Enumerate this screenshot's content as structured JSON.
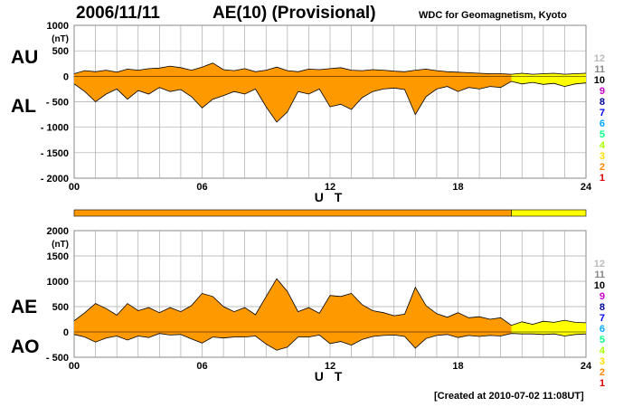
{
  "header": {
    "date": "2006/11/11",
    "title": "AE(10) (Provisional)",
    "source": "WDC for Geomagnetism, Kyoto"
  },
  "footer": {
    "created": "[Created at 2010-07-02 11:08UT]"
  },
  "colors": {
    "orange": "#ff9900",
    "yellow": "#ffff00",
    "grid": "#aaaaaa",
    "stations": [
      "#bbbbbb",
      "#888888",
      "#000000",
      "#cc00cc",
      "#000099",
      "#0000ff",
      "#00aaff",
      "#00ff88",
      "#aaff00",
      "#ffdd00",
      "#ff8800",
      "#dd0000",
      "#dd0088"
    ]
  },
  "stations_legend": [
    "12",
    "11",
    "10",
    "9",
    "8",
    "7",
    "6",
    "5",
    "4",
    "3",
    "2",
    "1"
  ],
  "station_coverage": [
    {
      "from_hour": 0,
      "to_hour": 20.5,
      "stations": 10,
      "color": "orange"
    },
    {
      "from_hour": 20.5,
      "to_hour": 24,
      "stations": 9,
      "color": "yellow"
    }
  ],
  "chart_data": [
    {
      "type": "area",
      "name": "AU/AL",
      "labels": {
        "upper": "AU",
        "lower": "AL"
      },
      "unit_label": "(nT)",
      "xlabel": "U T",
      "x_ticks": [
        "00",
        "06",
        "12",
        "18",
        "24"
      ],
      "y_ticks": [
        "1000",
        "500",
        "0",
        "- 500",
        "- 1000",
        "- 1500",
        "- 2000"
      ],
      "xlim": [
        0,
        24
      ],
      "ylim": [
        -2000,
        1000
      ],
      "series": [
        {
          "name": "AU",
          "x": [
            0,
            0.5,
            1,
            1.5,
            2,
            2.5,
            3,
            3.5,
            4,
            4.5,
            5,
            5.5,
            6,
            6.5,
            7,
            7.5,
            8,
            8.5,
            9,
            9.5,
            10,
            10.5,
            11,
            11.5,
            12,
            12.5,
            13,
            13.5,
            14,
            14.5,
            15,
            15.5,
            16,
            16.5,
            17,
            17.5,
            18,
            18.5,
            19,
            19.5,
            20,
            20.5,
            21,
            21.5,
            22,
            22.5,
            23,
            23.5,
            24
          ],
          "values": [
            50,
            110,
            90,
            120,
            80,
            140,
            120,
            150,
            160,
            200,
            170,
            120,
            180,
            260,
            130,
            110,
            150,
            90,
            120,
            180,
            110,
            90,
            140,
            130,
            150,
            170,
            120,
            110,
            130,
            120,
            100,
            90,
            120,
            140,
            110,
            90,
            80,
            70,
            60,
            50,
            50,
            40,
            60,
            40,
            50,
            60,
            40,
            50,
            60
          ]
        },
        {
          "name": "AL",
          "x": [
            0,
            0.5,
            1,
            1.5,
            2,
            2.5,
            3,
            3.5,
            4,
            4.5,
            5,
            5.5,
            6,
            6.5,
            7,
            7.5,
            8,
            8.5,
            9,
            9.5,
            10,
            10.5,
            11,
            11.5,
            12,
            12.5,
            13,
            13.5,
            14,
            14.5,
            15,
            15.5,
            16,
            16.5,
            17,
            17.5,
            18,
            18.5,
            19,
            19.5,
            20,
            20.5,
            21,
            21.5,
            22,
            22.5,
            23,
            23.5,
            24
          ],
          "values": [
            -150,
            -300,
            -500,
            -350,
            -250,
            -450,
            -280,
            -350,
            -220,
            -300,
            -260,
            -400,
            -620,
            -450,
            -380,
            -300,
            -350,
            -250,
            -600,
            -900,
            -700,
            -300,
            -350,
            -250,
            -600,
            -550,
            -650,
            -420,
            -300,
            -250,
            -230,
            -260,
            -750,
            -400,
            -250,
            -200,
            -300,
            -220,
            -250,
            -200,
            -220,
            -100,
            -150,
            -120,
            -160,
            -140,
            -200,
            -150,
            -130
          ]
        }
      ]
    },
    {
      "type": "area",
      "name": "AE/AO",
      "labels": {
        "upper": "AE",
        "lower": "AO"
      },
      "unit_label": "(nT)",
      "xlabel": "U T",
      "x_ticks": [
        "00",
        "06",
        "12",
        "18",
        "24"
      ],
      "y_ticks": [
        "2000",
        "1500",
        "1000",
        "500",
        "0",
        "- 500"
      ],
      "xlim": [
        0,
        24
      ],
      "ylim": [
        -500,
        2000
      ],
      "series": [
        {
          "name": "AE",
          "x": [
            0,
            0.5,
            1,
            1.5,
            2,
            2.5,
            3,
            3.5,
            4,
            4.5,
            5,
            5.5,
            6,
            6.5,
            7,
            7.5,
            8,
            8.5,
            9,
            9.5,
            10,
            10.5,
            11,
            11.5,
            12,
            12.5,
            13,
            13.5,
            14,
            14.5,
            15,
            15.5,
            16,
            16.5,
            17,
            17.5,
            18,
            18.5,
            19,
            19.5,
            20,
            20.5,
            21,
            21.5,
            22,
            22.5,
            23,
            23.5,
            24
          ],
          "values": [
            220,
            380,
            560,
            460,
            330,
            560,
            420,
            480,
            380,
            480,
            400,
            520,
            760,
            700,
            500,
            400,
            480,
            340,
            700,
            1050,
            800,
            400,
            480,
            370,
            720,
            700,
            760,
            540,
            420,
            380,
            320,
            350,
            880,
            520,
            360,
            290,
            380,
            280,
            300,
            250,
            280,
            130,
            200,
            150,
            210,
            190,
            230,
            190,
            180
          ]
        },
        {
          "name": "AO",
          "x": [
            0,
            0.5,
            1,
            1.5,
            2,
            2.5,
            3,
            3.5,
            4,
            4.5,
            5,
            5.5,
            6,
            6.5,
            7,
            7.5,
            8,
            8.5,
            9,
            9.5,
            10,
            10.5,
            11,
            11.5,
            12,
            12.5,
            13,
            13.5,
            14,
            14.5,
            15,
            15.5,
            16,
            16.5,
            17,
            17.5,
            18,
            18.5,
            19,
            19.5,
            20,
            20.5,
            21,
            21.5,
            22,
            22.5,
            23,
            23.5,
            24
          ],
          "values": [
            -50,
            -100,
            -200,
            -120,
            -80,
            -160,
            -80,
            -110,
            -30,
            -60,
            -50,
            -140,
            -220,
            -100,
            -120,
            -100,
            -100,
            -80,
            -240,
            -360,
            -300,
            -100,
            -100,
            -60,
            -230,
            -190,
            -260,
            -150,
            -90,
            -70,
            -60,
            -90,
            -320,
            -130,
            -70,
            -50,
            -110,
            -70,
            -90,
            -70,
            -80,
            -30,
            -40,
            -40,
            -50,
            -40,
            -80,
            -50,
            -40
          ]
        }
      ]
    }
  ]
}
